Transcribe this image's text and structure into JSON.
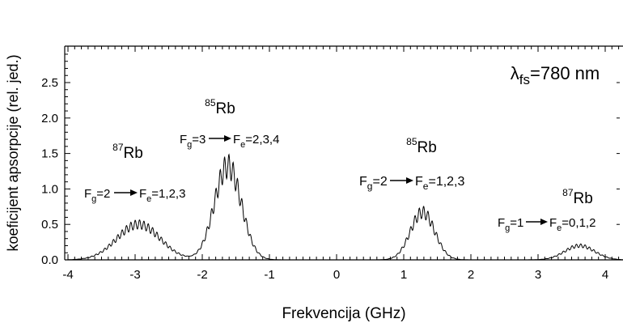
{
  "chart_data": {
    "type": "line",
    "xlabel": "Frekvencija (GHz)",
    "ylabel": "koeficijent apsorpcije (rel. jed.)",
    "xlim": [
      -4,
      4.3
    ],
    "ylim": [
      0,
      2.95
    ],
    "x_ticks": [
      -4,
      -3,
      -2,
      -1,
      0,
      1,
      2,
      3,
      4
    ],
    "x_tick_labels": [
      "-4",
      "-3",
      "-2",
      "-1",
      "0",
      "1",
      "2",
      "3",
      "4"
    ],
    "y_ticks": [
      0,
      0.5,
      1.0,
      1.5,
      2.0,
      2.5
    ],
    "y_tick_labels": [
      "0.0",
      "0.5",
      "1.0",
      "1.5",
      "2.0",
      "2.5"
    ],
    "grid": false,
    "peaks": [
      {
        "center": -2.95,
        "height": 0.5,
        "width": 0.32
      },
      {
        "center": -1.62,
        "height": 1.32,
        "width": 0.2
      },
      {
        "center": 1.28,
        "height": 0.67,
        "width": 0.18
      },
      {
        "center": 3.62,
        "height": 0.2,
        "width": 0.22
      }
    ],
    "annotations": {
      "wavelength": {
        "prefix": "λ",
        "sub": "fs",
        "value": "=780 nm"
      },
      "rb87_a": {
        "sup": "87",
        "name": "Rb",
        "transition": {
          "f": "F",
          "fsub": "g",
          "fval": "=2",
          "e": "F",
          "esub": "e",
          "eval": "=1,2,3"
        }
      },
      "rb85_a": {
        "sup": "85",
        "name": "Rb",
        "transition": {
          "f": "F",
          "fsub": "g",
          "fval": "=3",
          "e": "F",
          "esub": "e",
          "eval": "=2,3,4"
        }
      },
      "rb85_b": {
        "sup": "85",
        "name": "Rb",
        "transition": {
          "f": "F",
          "fsub": "g",
          "fval": "=2",
          "e": "F",
          "esub": "e",
          "eval": "=1,2,3"
        }
      },
      "rb87_b": {
        "sup": "87",
        "name": "Rb",
        "transition": {
          "f": "F",
          "fsub": "g",
          "fval": "=1",
          "e": "F",
          "esub": "e",
          "eval": "=0,1,2"
        }
      }
    },
    "colors": {
      "line": "#000000",
      "background": "#ffffff"
    }
  }
}
